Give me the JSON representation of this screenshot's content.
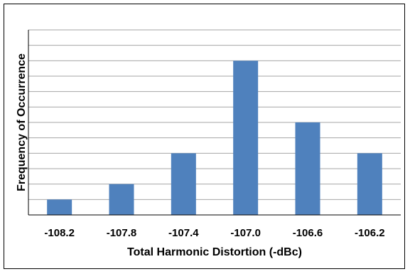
{
  "chart_data": {
    "type": "bar",
    "title": "",
    "xlabel": "Total Harmonic Distortion (-dBc)",
    "ylabel": "Frequency of Occurrence",
    "categories": [
      "-108.2",
      "-107.8",
      "-107.4",
      "-107.0",
      "-106.6",
      "-106.2"
    ],
    "values": [
      1,
      2,
      4,
      10,
      6,
      4
    ],
    "ylim": [
      0,
      12
    ],
    "y_gridlines": true,
    "y_tick_labels_shown": false,
    "legend": "none",
    "bar_color": "#4f81bd",
    "grid_color": "#a6a6a6",
    "axis_color": "#000000"
  }
}
